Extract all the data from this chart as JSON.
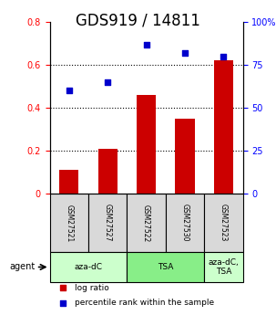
{
  "title": "GDS919 / 14811",
  "samples": [
    "GSM27521",
    "GSM27527",
    "GSM27522",
    "GSM27530",
    "GSM27523"
  ],
  "log_ratio": [
    0.11,
    0.21,
    0.46,
    0.35,
    0.62
  ],
  "percentile_rank": [
    60,
    65,
    87,
    82,
    80
  ],
  "ylim_left": [
    0,
    0.8
  ],
  "ylim_right": [
    0,
    100
  ],
  "yticks_left": [
    0,
    0.2,
    0.4,
    0.6,
    0.8
  ],
  "yticks_right": [
    0,
    25,
    50,
    75,
    100
  ],
  "bar_color": "#cc0000",
  "scatter_color": "#0000cc",
  "agent_groups": [
    {
      "label": "aza-dC",
      "start": 0,
      "end": 2,
      "color": "#ccffcc"
    },
    {
      "label": "TSA",
      "start": 2,
      "end": 4,
      "color": "#88ee88"
    },
    {
      "label": "aza-dC,\nTSA",
      "start": 4,
      "end": 5,
      "color": "#ccffcc"
    }
  ],
  "agent_label": "agent",
  "legend_bar_label": "log ratio",
  "legend_scatter_label": "percentile rank within the sample",
  "title_fontsize": 12,
  "tick_label_fontsize": 7,
  "axis_label_fontsize": 9
}
